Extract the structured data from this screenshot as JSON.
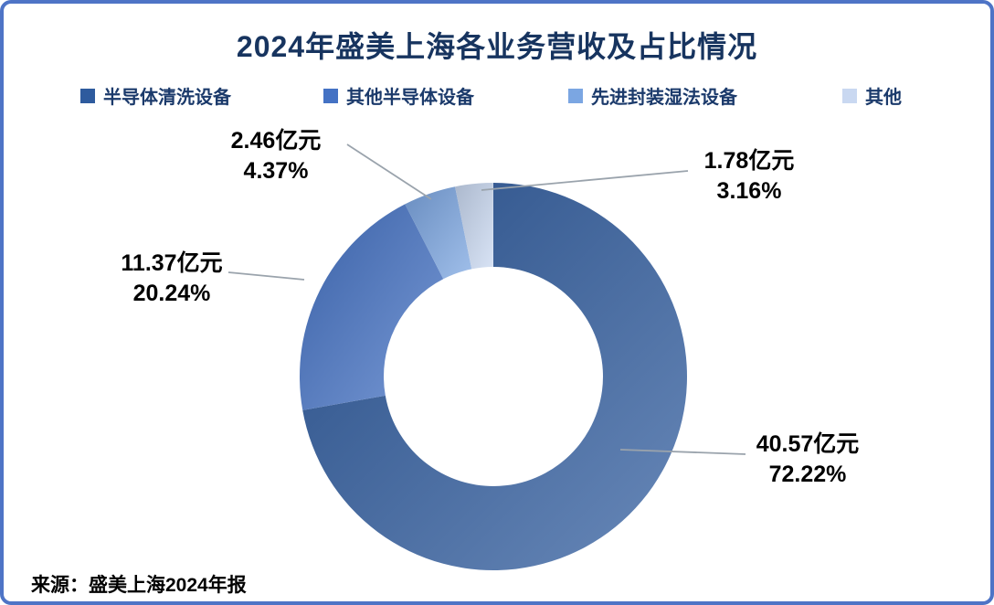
{
  "title": "2024年盛美上海各业务营收及占比情况",
  "source": "来源：盛美上海2024年报",
  "legend": [
    {
      "label": "半导体清洗设备",
      "color": "#2e5b9e"
    },
    {
      "label": "其他半导体设备",
      "color": "#4472c4"
    },
    {
      "label": "先进封装湿法设备",
      "color": "#7ba6e2"
    },
    {
      "label": "其他",
      "color": "#c9d8f1"
    }
  ],
  "chart_data": {
    "type": "pie",
    "subtype": "donut",
    "title": "2024年盛美上海各业务营收及占比情况",
    "unit": "亿元",
    "categories": [
      "半导体清洗设备",
      "其他半导体设备",
      "先进封装湿法设备",
      "其他"
    ],
    "values": [
      40.57,
      11.37,
      2.46,
      1.78
    ],
    "percentages": [
      72.22,
      20.24,
      4.37,
      3.16
    ],
    "colors": [
      "#2e5b9e",
      "#4472c4",
      "#7ba6e2",
      "#c9d8f1"
    ],
    "start_angle_deg": 0,
    "direction": "clockwise",
    "legend_position": "top",
    "labels": [
      {
        "value": "40.57亿元",
        "percent": "72.22%"
      },
      {
        "value": "11.37亿元",
        "percent": "20.24%"
      },
      {
        "value": "2.46亿元",
        "percent": "4.37%"
      },
      {
        "value": "1.78亿元",
        "percent": "3.16%"
      }
    ]
  }
}
